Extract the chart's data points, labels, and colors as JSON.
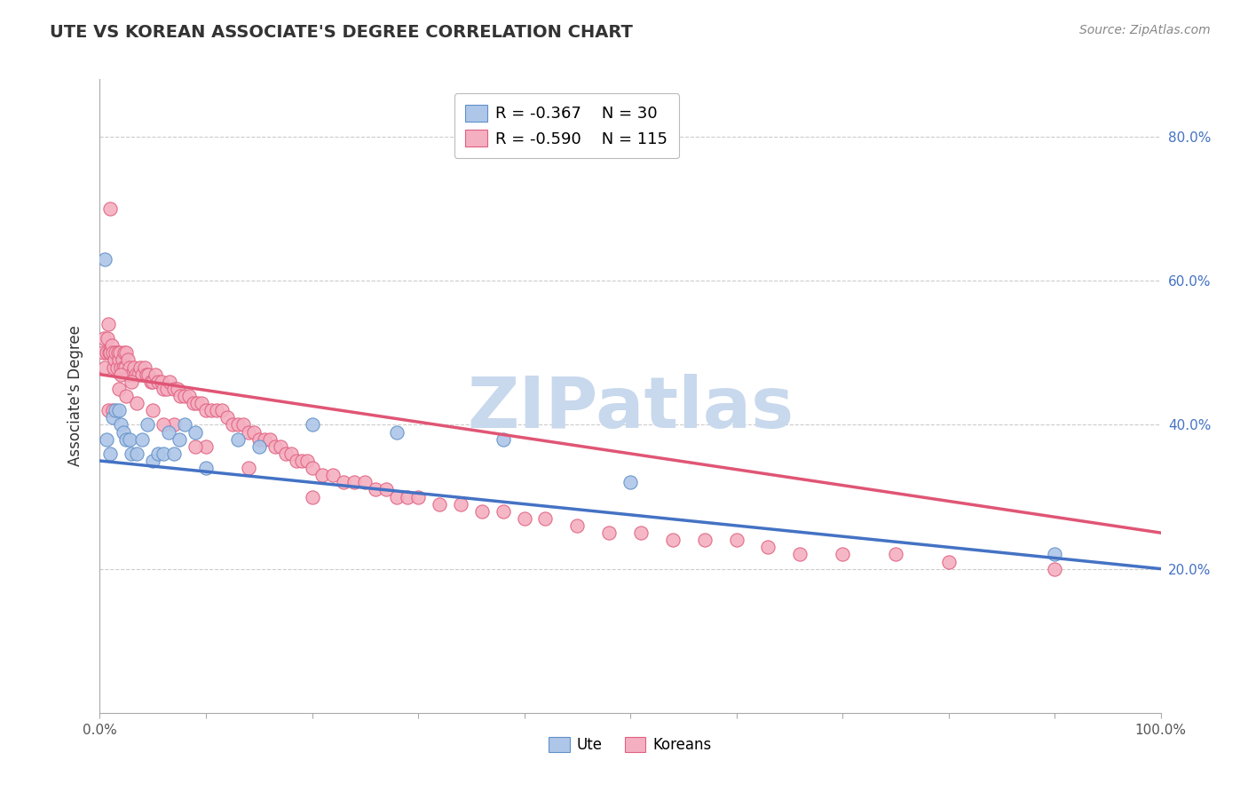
{
  "title": "UTE VS KOREAN ASSOCIATE'S DEGREE CORRELATION CHART",
  "source": "Source: ZipAtlas.com",
  "ylabel": "Associate's Degree",
  "legend_ute": "Ute",
  "legend_korean": "Koreans",
  "ute_R": -0.367,
  "ute_N": 30,
  "korean_R": -0.59,
  "korean_N": 115,
  "ute_color": "#aec6e8",
  "korean_color": "#f4afc0",
  "ute_edge_color": "#6090c8",
  "korean_edge_color": "#e06080",
  "ute_line_color": "#4472c4",
  "korean_line_color": "#e05575",
  "watermark": "ZIPatlas",
  "watermark_color": "#c8d8ed",
  "ytick_color": "#4472c4",
  "ute_scatter_x": [
    0.005,
    0.006,
    0.01,
    0.012,
    0.015,
    0.018,
    0.02,
    0.022,
    0.025,
    0.028,
    0.03,
    0.035,
    0.04,
    0.045,
    0.05,
    0.055,
    0.06,
    0.065,
    0.07,
    0.075,
    0.08,
    0.09,
    0.1,
    0.13,
    0.15,
    0.2,
    0.28,
    0.38,
    0.5,
    0.9
  ],
  "ute_scatter_y": [
    0.63,
    0.38,
    0.36,
    0.41,
    0.42,
    0.42,
    0.4,
    0.39,
    0.38,
    0.38,
    0.36,
    0.36,
    0.38,
    0.4,
    0.35,
    0.36,
    0.36,
    0.39,
    0.36,
    0.38,
    0.4,
    0.39,
    0.34,
    0.38,
    0.37,
    0.4,
    0.39,
    0.38,
    0.32,
    0.22
  ],
  "korean_scatter_x": [
    0.003,
    0.004,
    0.005,
    0.006,
    0.007,
    0.008,
    0.009,
    0.01,
    0.011,
    0.012,
    0.013,
    0.014,
    0.015,
    0.016,
    0.017,
    0.018,
    0.019,
    0.02,
    0.021,
    0.022,
    0.023,
    0.024,
    0.025,
    0.026,
    0.027,
    0.028,
    0.03,
    0.032,
    0.034,
    0.036,
    0.038,
    0.04,
    0.042,
    0.044,
    0.046,
    0.048,
    0.05,
    0.052,
    0.055,
    0.058,
    0.06,
    0.063,
    0.066,
    0.07,
    0.073,
    0.076,
    0.08,
    0.084,
    0.088,
    0.092,
    0.096,
    0.1,
    0.105,
    0.11,
    0.115,
    0.12,
    0.125,
    0.13,
    0.135,
    0.14,
    0.145,
    0.15,
    0.155,
    0.16,
    0.165,
    0.17,
    0.175,
    0.18,
    0.185,
    0.19,
    0.195,
    0.2,
    0.21,
    0.22,
    0.23,
    0.24,
    0.25,
    0.26,
    0.27,
    0.28,
    0.29,
    0.3,
    0.32,
    0.34,
    0.36,
    0.38,
    0.4,
    0.42,
    0.45,
    0.48,
    0.51,
    0.54,
    0.57,
    0.6,
    0.63,
    0.66,
    0.7,
    0.75,
    0.8,
    0.9,
    0.008,
    0.012,
    0.018,
    0.025,
    0.035,
    0.05,
    0.07,
    0.1,
    0.14,
    0.2,
    0.01,
    0.02,
    0.03,
    0.06,
    0.09
  ],
  "korean_scatter_y": [
    0.5,
    0.52,
    0.48,
    0.5,
    0.52,
    0.54,
    0.5,
    0.5,
    0.51,
    0.5,
    0.48,
    0.49,
    0.5,
    0.48,
    0.5,
    0.49,
    0.5,
    0.48,
    0.49,
    0.48,
    0.5,
    0.48,
    0.5,
    0.49,
    0.47,
    0.48,
    0.47,
    0.48,
    0.47,
    0.47,
    0.48,
    0.47,
    0.48,
    0.47,
    0.47,
    0.46,
    0.46,
    0.47,
    0.46,
    0.46,
    0.45,
    0.45,
    0.46,
    0.45,
    0.45,
    0.44,
    0.44,
    0.44,
    0.43,
    0.43,
    0.43,
    0.42,
    0.42,
    0.42,
    0.42,
    0.41,
    0.4,
    0.4,
    0.4,
    0.39,
    0.39,
    0.38,
    0.38,
    0.38,
    0.37,
    0.37,
    0.36,
    0.36,
    0.35,
    0.35,
    0.35,
    0.34,
    0.33,
    0.33,
    0.32,
    0.32,
    0.32,
    0.31,
    0.31,
    0.3,
    0.3,
    0.3,
    0.29,
    0.29,
    0.28,
    0.28,
    0.27,
    0.27,
    0.26,
    0.25,
    0.25,
    0.24,
    0.24,
    0.24,
    0.23,
    0.22,
    0.22,
    0.22,
    0.21,
    0.2,
    0.42,
    0.42,
    0.45,
    0.44,
    0.43,
    0.42,
    0.4,
    0.37,
    0.34,
    0.3,
    0.7,
    0.47,
    0.46,
    0.4,
    0.37
  ]
}
